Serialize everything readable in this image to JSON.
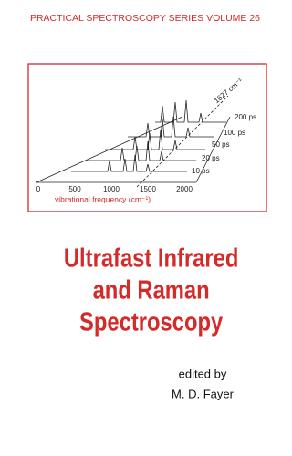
{
  "header": {
    "series": "PRACTICAL SPECTROSCOPY SERIES VOLUME 26"
  },
  "illustration": {
    "axis_ticks": [
      "0",
      "500",
      "1000",
      "1500",
      "2000"
    ],
    "axis_label": "vibrational frequency (cm⁻¹)",
    "time_labels": [
      "200 ps",
      "100 ps",
      "50 ps",
      "20 ps",
      "10 ps"
    ],
    "peak_label": "1627 cm⁻¹"
  },
  "title": {
    "lines": [
      "Ultrafast Infrared",
      "and Raman",
      "Spectroscopy"
    ]
  },
  "editor": {
    "prefix": "edited by",
    "name": "M. D. Fayer"
  }
}
